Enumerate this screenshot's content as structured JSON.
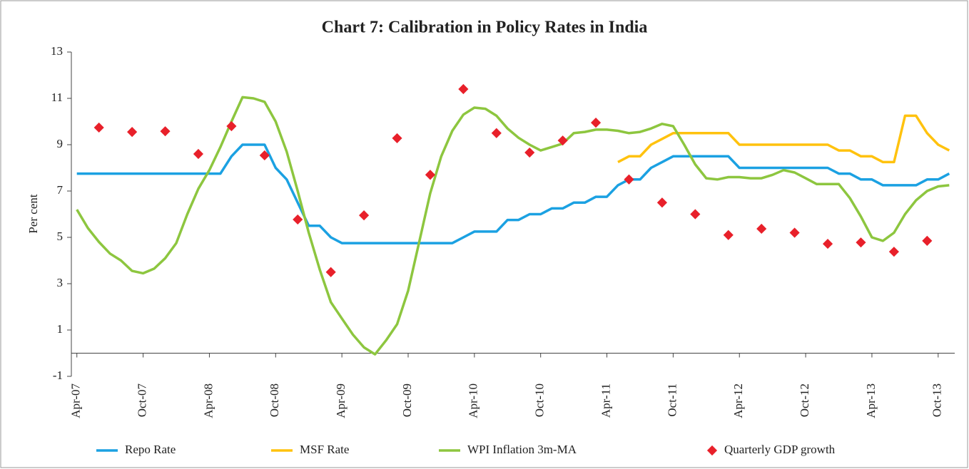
{
  "chart_data": {
    "type": "line",
    "title": "Chart 7: Calibration in Policy Rates in India",
    "ylabel": "Per cent",
    "categories": [
      "Apr-07",
      null,
      null,
      null,
      null,
      null,
      "Oct-07",
      null,
      null,
      null,
      null,
      null,
      "Apr-08",
      null,
      null,
      null,
      null,
      null,
      "Oct-08",
      null,
      null,
      null,
      null,
      null,
      "Apr-09",
      null,
      null,
      null,
      null,
      null,
      "Oct-09",
      null,
      null,
      null,
      null,
      null,
      "Apr-10",
      null,
      null,
      null,
      null,
      null,
      "Oct-10",
      null,
      null,
      null,
      null,
      null,
      "Apr-11",
      null,
      null,
      null,
      null,
      null,
      "Oct-11",
      null,
      null,
      null,
      null,
      null,
      "Apr-12",
      null,
      null,
      null,
      null,
      null,
      "Oct-12",
      null,
      null,
      null,
      null,
      null,
      "Apr-13",
      null,
      null,
      null,
      null,
      null,
      "Oct-13",
      null
    ],
    "ylim": [
      -1,
      13
    ],
    "yticks": [
      -1,
      1,
      3,
      5,
      7,
      9,
      11,
      13
    ],
    "legend": "bottom",
    "series": [
      {
        "name": "Repo Rate",
        "color": "#1ba1e2",
        "marker": "none",
        "values": [
          7.75,
          7.75,
          7.75,
          7.75,
          7.75,
          7.75,
          7.75,
          7.75,
          7.75,
          7.75,
          7.75,
          7.75,
          7.75,
          7.75,
          8.5,
          9,
          9,
          9,
          8.0,
          7.5,
          6.5,
          5.5,
          5.5,
          5.0,
          4.75,
          4.75,
          4.75,
          4.75,
          4.75,
          4.75,
          4.75,
          4.75,
          4.75,
          4.75,
          4.75,
          5.0,
          5.25,
          5.25,
          5.25,
          5.75,
          5.75,
          6.0,
          6.0,
          6.25,
          6.25,
          6.5,
          6.5,
          6.75,
          6.75,
          7.25,
          7.5,
          7.5,
          8.0,
          8.25,
          8.5,
          8.5,
          8.5,
          8.5,
          8.5,
          8.5,
          8.0,
          8.0,
          8.0,
          8.0,
          8.0,
          8.0,
          8.0,
          8.0,
          8.0,
          7.75,
          7.75,
          7.5,
          7.5,
          7.25,
          7.25,
          7.25,
          7.25,
          7.5,
          7.5,
          7.75
        ]
      },
      {
        "name": "MSF Rate",
        "color": "#ffc20e",
        "marker": "none",
        "values": [
          null,
          null,
          null,
          null,
          null,
          null,
          null,
          null,
          null,
          null,
          null,
          null,
          null,
          null,
          null,
          null,
          null,
          null,
          null,
          null,
          null,
          null,
          null,
          null,
          null,
          null,
          null,
          null,
          null,
          null,
          null,
          null,
          null,
          null,
          null,
          null,
          null,
          null,
          null,
          null,
          null,
          null,
          null,
          null,
          null,
          null,
          null,
          null,
          null,
          8.25,
          8.5,
          8.5,
          9.0,
          9.25,
          9.5,
          9.5,
          9.5,
          9.5,
          9.5,
          9.5,
          9.0,
          9.0,
          9.0,
          9.0,
          9.0,
          9.0,
          9.0,
          9.0,
          9.0,
          8.75,
          8.75,
          8.5,
          8.5,
          8.25,
          8.25,
          10.25,
          10.25,
          9.5,
          9.0,
          8.75
        ]
      },
      {
        "name": "WPI Inflation 3m-MA",
        "color": "#8dc63f",
        "marker": "none",
        "values": [
          6.2,
          5.4,
          4.8,
          4.3,
          4.0,
          3.55,
          3.45,
          3.65,
          4.1,
          4.75,
          6.0,
          7.1,
          7.9,
          8.9,
          10.0,
          11.05,
          11.0,
          10.85,
          10.0,
          8.7,
          7.0,
          5.2,
          3.6,
          2.2,
          1.5,
          0.8,
          0.25,
          -0.05,
          0.55,
          1.25,
          2.7,
          4.8,
          6.9,
          8.5,
          9.6,
          10.3,
          10.6,
          10.55,
          10.25,
          9.7,
          9.3,
          9.0,
          8.75,
          8.9,
          9.05,
          9.5,
          9.55,
          9.65,
          9.65,
          9.6,
          9.5,
          9.55,
          9.7,
          9.9,
          9.8,
          9.0,
          8.15,
          7.55,
          7.5,
          7.6,
          7.6,
          7.55,
          7.55,
          7.7,
          7.9,
          7.8,
          7.55,
          7.3,
          7.3,
          7.3,
          6.7,
          5.9,
          5.0,
          4.85,
          5.2,
          6.0,
          6.6,
          7.0,
          7.2,
          7.25
        ]
      },
      {
        "name": "Quarterly GDP growth",
        "color": "#e8202a",
        "marker": "diamond",
        "values": [
          null,
          null,
          9.74,
          null,
          null,
          9.55,
          null,
          null,
          9.58,
          null,
          null,
          8.6,
          null,
          null,
          9.8,
          null,
          null,
          8.54,
          null,
          null,
          5.77,
          null,
          null,
          3.5,
          null,
          null,
          5.95,
          null,
          null,
          9.28,
          null,
          null,
          7.7,
          null,
          null,
          11.4,
          null,
          null,
          9.5,
          null,
          null,
          8.66,
          null,
          null,
          9.18,
          null,
          null,
          9.95,
          null,
          null,
          7.5,
          null,
          null,
          6.5,
          null,
          null,
          6.0,
          null,
          null,
          5.1,
          null,
          null,
          5.37,
          null,
          null,
          5.2,
          null,
          null,
          4.72,
          null,
          null,
          4.78,
          null,
          null,
          4.38,
          null,
          null,
          4.85,
          null,
          null
        ]
      }
    ]
  }
}
